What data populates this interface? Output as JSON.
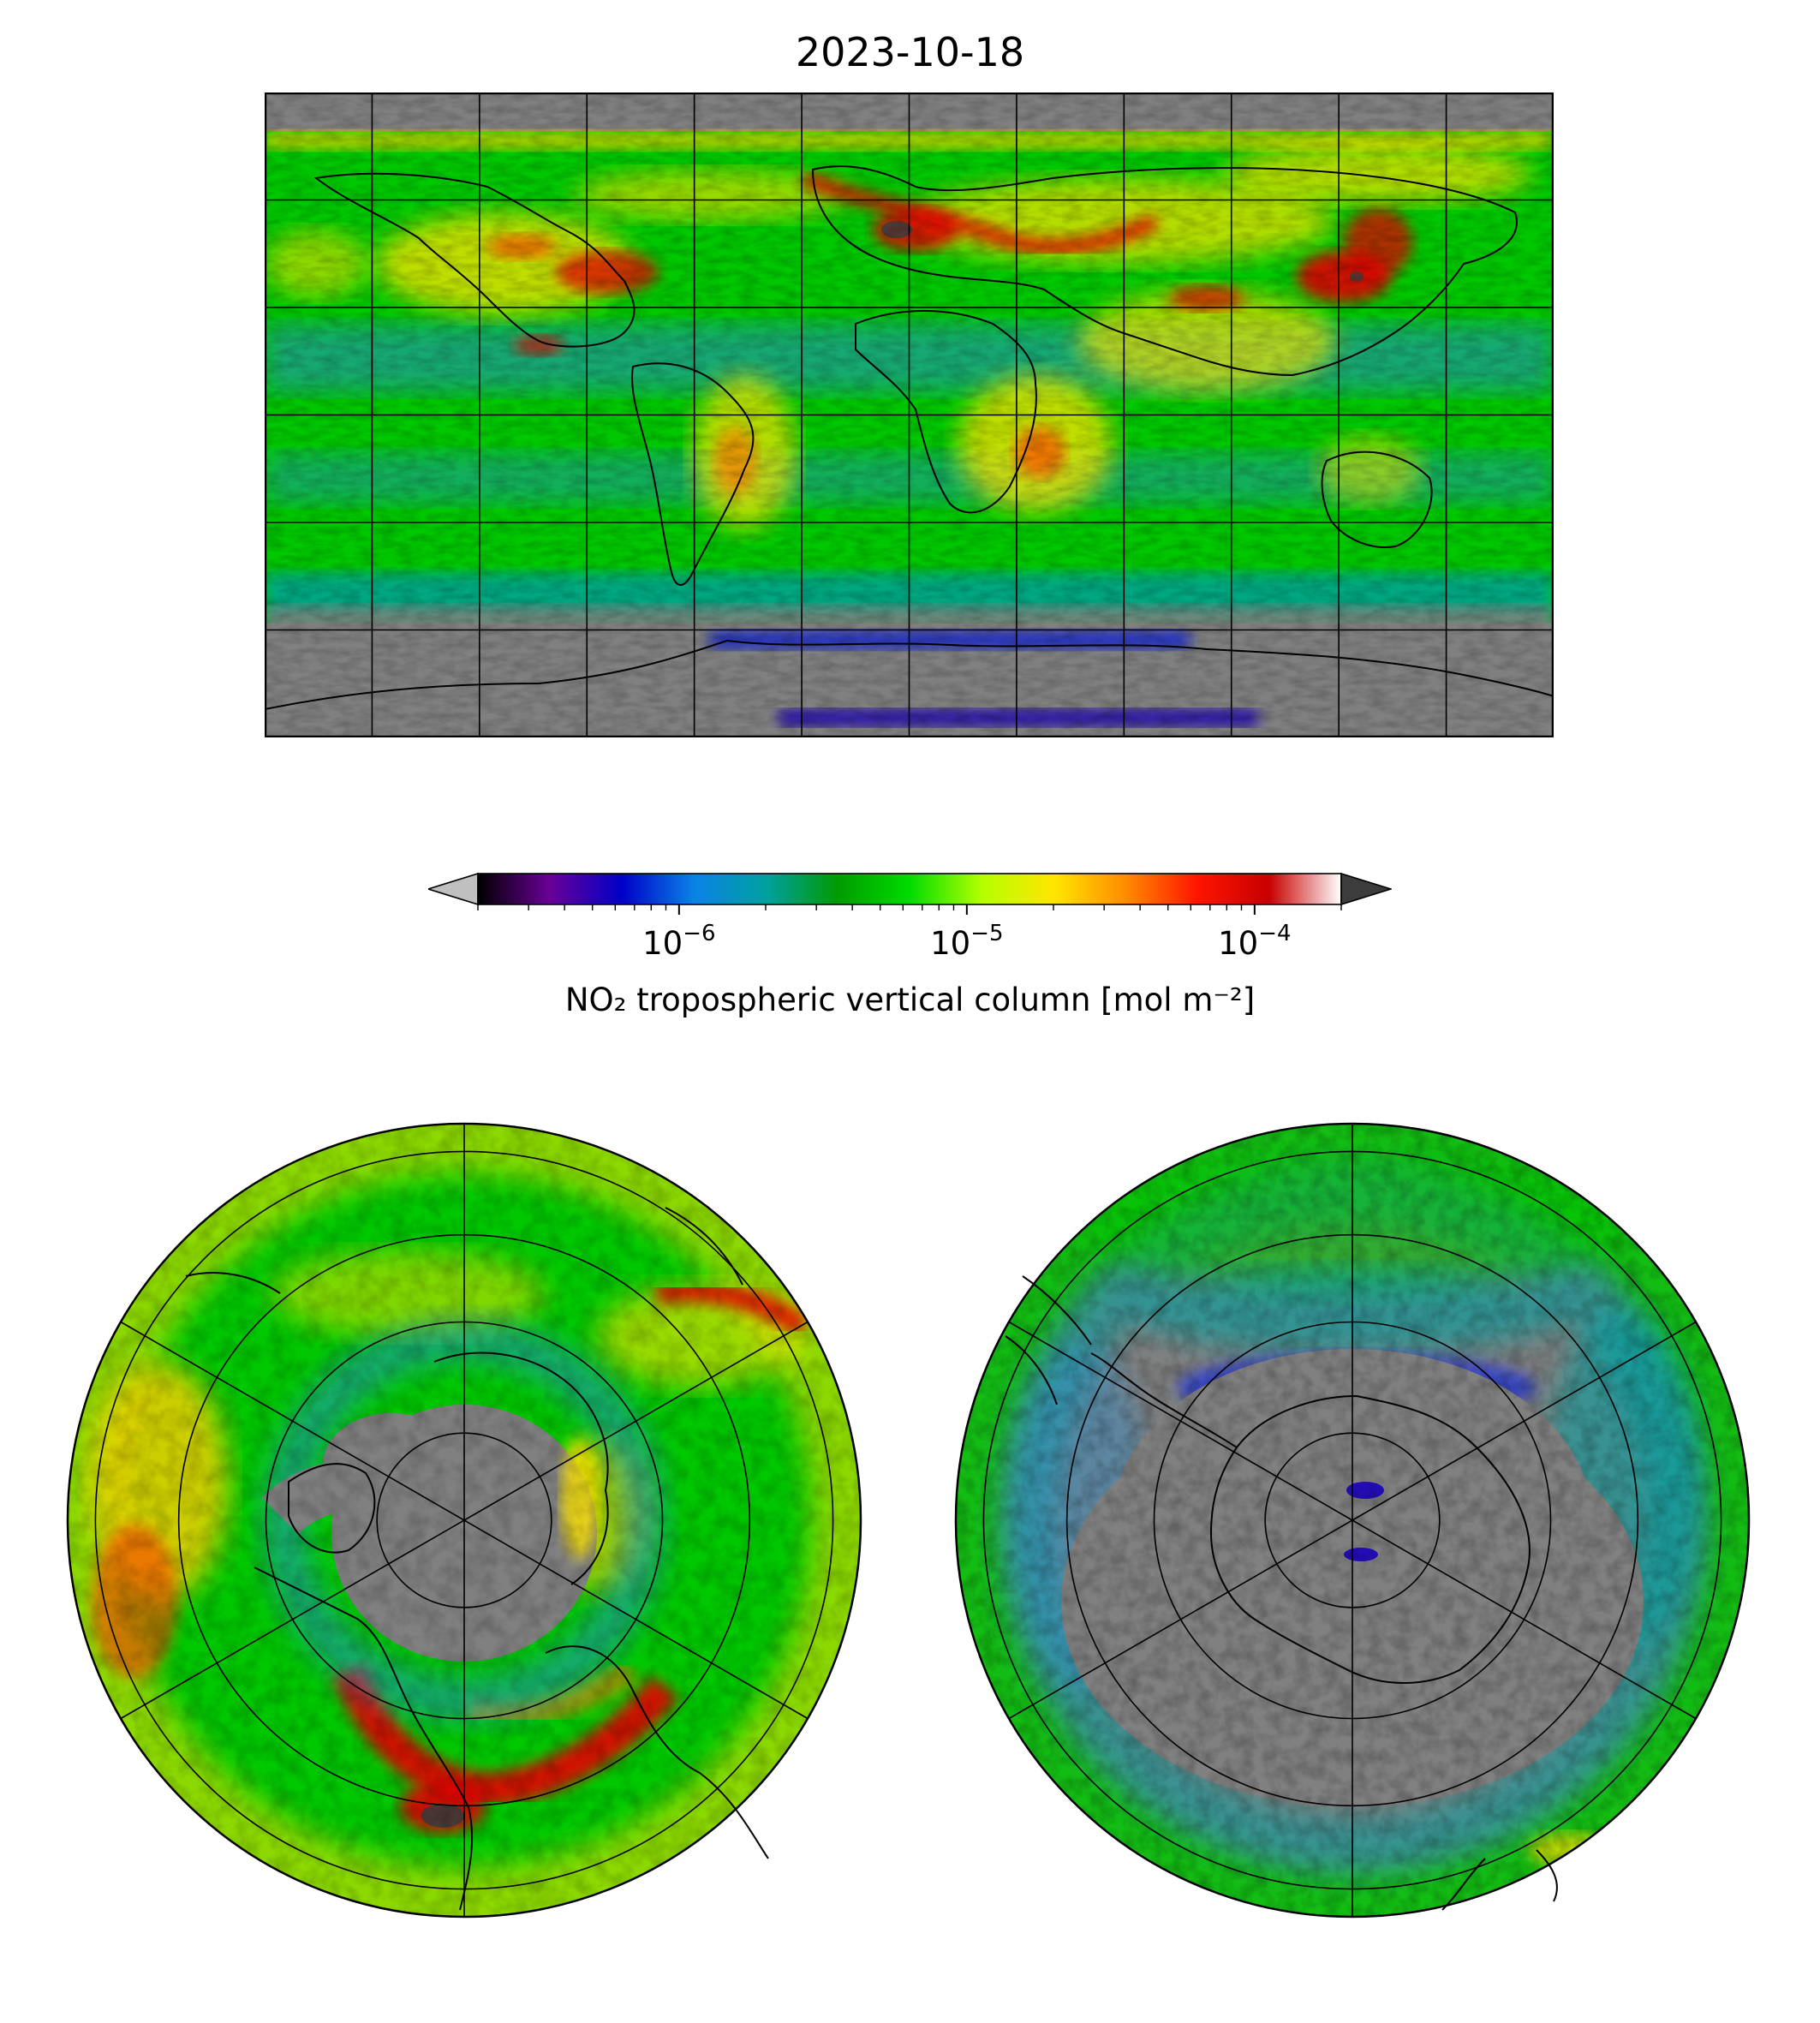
{
  "title": "2023-10-18",
  "colorbar": {
    "label": "NO₂ tropospheric vertical column [mol m⁻²]",
    "scale": "log",
    "range": [
      2e-07,
      0.0002
    ],
    "ticks": [
      {
        "value": 1e-06,
        "base": "10",
        "exp": "−6"
      },
      {
        "value": 1e-05,
        "base": "10",
        "exp": "−5"
      },
      {
        "value": 0.0001,
        "base": "10",
        "exp": "−4"
      }
    ],
    "extend": "both",
    "under_color": "#c0c0c0",
    "over_color": "#3c3c3c",
    "colormap": [
      "#000000",
      "#6a0096",
      "#0000c8",
      "#0a82e6",
      "#00a0a0",
      "#009b00",
      "#00dc00",
      "#b4ff00",
      "#ffe600",
      "#ff8c00",
      "#ff1400",
      "#c80000",
      "#ffffff"
    ]
  },
  "colors": {
    "no_data": "#808080",
    "coastline": "#000000",
    "gridline": "#000000"
  },
  "maps": {
    "global": {
      "projection": "plate-carree",
      "gridline_lon_step_deg": 30,
      "gridline_lat_step_deg": 30
    },
    "north_polar": {
      "projection": "north-polar-stereographic",
      "hemisphere": "north"
    },
    "south_polar": {
      "projection": "south-polar-stereographic",
      "hemisphere": "south"
    }
  }
}
